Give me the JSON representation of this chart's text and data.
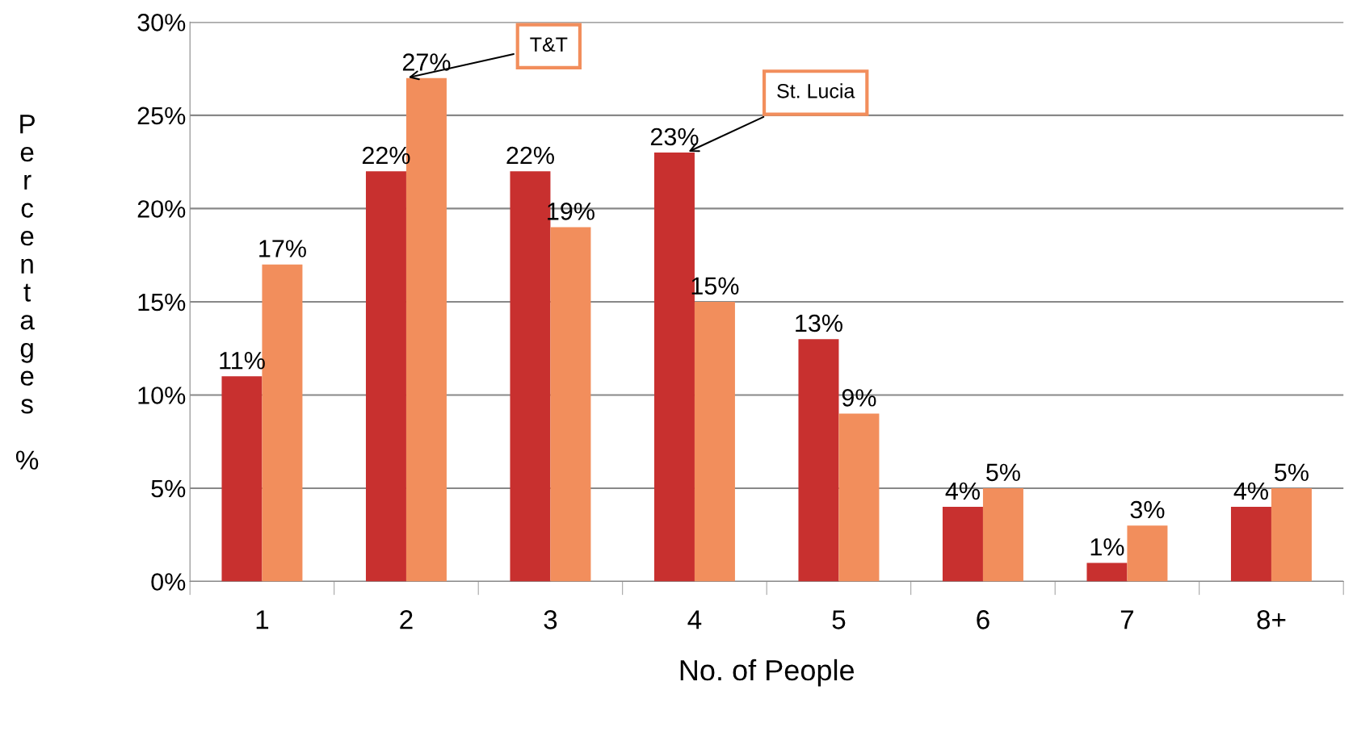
{
  "chart_data": {
    "type": "bar",
    "xlabel": "No. of People",
    "ylabel": "Percentages %",
    "categories": [
      "1",
      "2",
      "3",
      "4",
      "5",
      "6",
      "7",
      "8+"
    ],
    "series": [
      {
        "color": "#c8302f",
        "values": [
          11,
          22,
          22,
          23,
          13,
          4,
          1,
          4
        ],
        "value_labels": [
          "11%",
          "22%",
          "22%",
          "23%",
          "13%",
          "4%",
          "1%",
          "4%"
        ]
      },
      {
        "color": "#f28e5c",
        "values": [
          17,
          27,
          19,
          15,
          9,
          5,
          3,
          5
        ],
        "value_labels": [
          "17%",
          "27%",
          "19%",
          "15%",
          "9%",
          "5%",
          "3%",
          "5%"
        ]
      }
    ],
    "ylim": [
      0,
      30
    ],
    "yticks": [
      {
        "value": 0,
        "label": "0%"
      },
      {
        "value": 5,
        "label": "5%"
      },
      {
        "value": 10,
        "label": "10%"
      },
      {
        "value": 15,
        "label": "15%"
      },
      {
        "value": 20,
        "label": "20%"
      },
      {
        "value": 25,
        "label": "25%"
      },
      {
        "value": 30,
        "label": "30%"
      }
    ],
    "grid": "y",
    "legend": false,
    "annotations": [
      {
        "text": "T&T",
        "x": "2",
        "y": 27
      },
      {
        "text": "St. Lucia",
        "x": "4",
        "y": 23
      }
    ]
  }
}
